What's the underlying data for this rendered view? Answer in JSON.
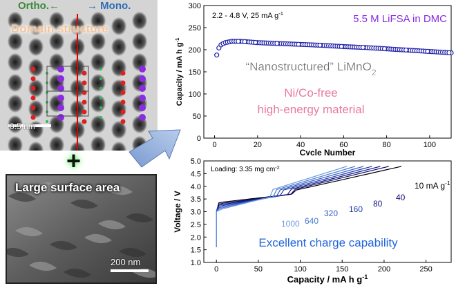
{
  "left": {
    "ortho_label": "Ortho.←",
    "mono_label": "→ Mono.",
    "domain_title": "Domain structure",
    "scale_top": "0.5 nm",
    "plus_sign": "+",
    "surface_title": "Large surface area",
    "scale_bottom": "200 nm"
  },
  "colors": {
    "series_blue": "#1f1fa8",
    "electrolyte": "#8a2be2",
    "material_pink": "#e87aa0",
    "cap_label": "#2266dd"
  },
  "chart_data": [
    {
      "type": "scatter",
      "title": "",
      "conditions": "2.2 - 4.8 V, 25 mA g",
      "conditions_sup": "-1",
      "electrolyte": "5.5 M LiFSA in DMC",
      "annotation_main": "“Nanostructured” LiMnO",
      "annotation_sub": "2",
      "annotation_pink_1": "Ni/Co-free",
      "annotation_pink_2": "high-energy material",
      "xlabel": "Cycle Number",
      "ylabel": "Capacity  /  mA h g",
      "ylabel_sup": "-1",
      "xlim": [
        -5,
        110
      ],
      "ylim": [
        0,
        300
      ],
      "xticks": [
        0,
        20,
        40,
        60,
        80,
        100
      ],
      "yticks": [
        0,
        50,
        100,
        150,
        200,
        250,
        300
      ],
      "series": [
        {
          "name": "capacity",
          "x": [
            1,
            2,
            3,
            4,
            5,
            6,
            7,
            8,
            9,
            10,
            12,
            15,
            20,
            30,
            40,
            50,
            60,
            70,
            80,
            90,
            100,
            110
          ],
          "y": [
            188,
            204,
            211,
            214,
            216,
            217,
            218,
            219,
            219,
            219,
            219,
            218,
            216,
            214,
            212,
            210,
            207,
            205,
            202,
            199,
            196,
            193
          ]
        }
      ]
    },
    {
      "type": "line",
      "title": "",
      "loading_text": "Loading: 3.35 mg cm",
      "loading_sup": "-2",
      "caption": "Excellent charge capability",
      "xlabel": "Capacity  /  mA h g",
      "xlabel_sup": "-1",
      "ylabel": "Voltage  /  V",
      "xlim": [
        -15,
        280
      ],
      "ylim": [
        1.0,
        5.0
      ],
      "xticks": [
        0,
        50,
        100,
        150,
        200,
        250
      ],
      "yticks": [
        1.0,
        1.5,
        2.0,
        2.5,
        3.0,
        3.5,
        4.0,
        4.5,
        5.0
      ],
      "rate_labels": [
        "10 mA g",
        "40",
        "80",
        "160",
        "320",
        "640",
        "1000"
      ],
      "rate_label_sup": "-1",
      "series": [
        {
          "name": "10",
          "color": "#000000",
          "end_x": 220,
          "start_v": 3.35,
          "knee_x": 95
        },
        {
          "name": "40",
          "color": "#0a0a6e",
          "end_x": 205,
          "start_v": 3.3,
          "knee_x": 90
        },
        {
          "name": "80",
          "color": "#141488",
          "end_x": 195,
          "start_v": 3.25,
          "knee_x": 85
        },
        {
          "name": "160",
          "color": "#1e3aa8",
          "end_x": 185,
          "start_v": 3.2,
          "knee_x": 80
        },
        {
          "name": "320",
          "color": "#2f5cc0",
          "end_x": 175,
          "start_v": 3.15,
          "knee_x": 75
        },
        {
          "name": "640",
          "color": "#4a7ad0",
          "end_x": 165,
          "start_v": 3.1,
          "knee_x": 70
        },
        {
          "name": "1000",
          "color": "#6a9ae0",
          "end_x": 155,
          "start_v": 3.05,
          "knee_x": 65
        }
      ]
    }
  ]
}
